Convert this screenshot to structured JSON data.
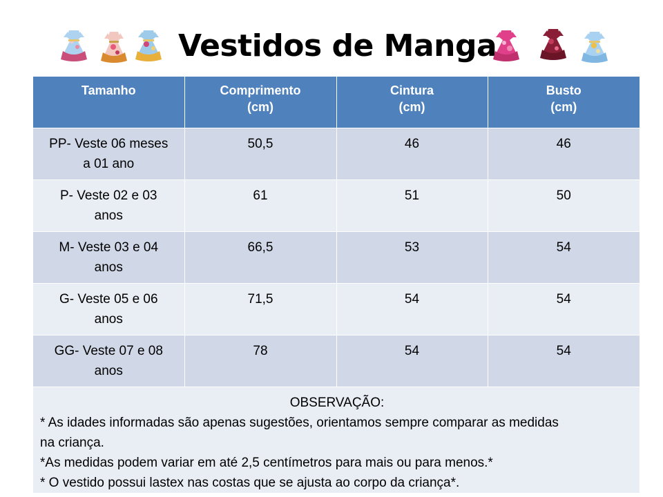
{
  "title": "Vestidos de Manga",
  "decorations": {
    "left_dresses": [
      "dress-icon",
      "dress-icon",
      "dress-icon"
    ],
    "right_dresses": [
      "dress-icon",
      "dress-icon",
      "dress-icon"
    ]
  },
  "colors": {
    "header_bg": "#4f81bd",
    "row_dark": "#d0d8e8",
    "row_light": "#e9edf4"
  },
  "table": {
    "headers": [
      {
        "line1": "Tamanho",
        "line2": ""
      },
      {
        "line1": "Comprimento",
        "line2": "(cm)"
      },
      {
        "line1": "Cintura",
        "line2": "(cm)"
      },
      {
        "line1": "Busto",
        "line2": "(cm)"
      }
    ],
    "rows": [
      {
        "size_line1": "PP- Veste 06 meses",
        "size_line2": "a 01 ano",
        "comprimento": "50,5",
        "cintura": "46",
        "busto": "46"
      },
      {
        "size_line1": "P- Veste 02 e 03",
        "size_line2": "anos",
        "comprimento": "61",
        "cintura": "51",
        "busto": "50"
      },
      {
        "size_line1": "M- Veste 03 e 04",
        "size_line2": "anos",
        "comprimento": "66,5",
        "cintura": "53",
        "busto": "54"
      },
      {
        "size_line1": "G- Veste 05 e 06",
        "size_line2": "anos",
        "comprimento": "71,5",
        "cintura": "54",
        "busto": "54"
      },
      {
        "size_line1": "GG- Veste 07 e 08",
        "size_line2": "anos",
        "comprimento": "78",
        "cintura": "54",
        "busto": "54"
      }
    ]
  },
  "observacao": {
    "title": "OBSERVAÇÃO:",
    "lines": [
      "* As idades informadas são apenas sugestões, orientamos sempre comparar as medidas",
      "na criança.",
      "*As medidas podem variar em até 2,5 centímetros para mais ou para menos.*",
      "* O vestido possui lastex nas costas que se ajusta  ao corpo da criança*."
    ]
  }
}
